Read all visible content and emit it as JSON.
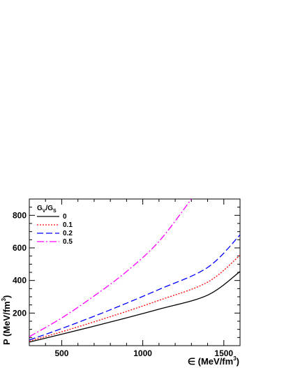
{
  "chart_data": {
    "type": "line",
    "xlabel": "∈ (MeV/fm",
    "xlabel_sup": "3",
    "xlabel_close": ")",
    "ylabel": "P (MeV/fm",
    "ylabel_sup": "3",
    "ylabel_close": ")",
    "xlim": [
      300,
      1600
    ],
    "ylim": [
      0,
      900
    ],
    "xticks": [
      500,
      1000,
      1500
    ],
    "yticks": [
      200,
      400,
      600,
      800
    ],
    "grid": false,
    "legend_position": "top-left",
    "legend_title": {
      "main": "G",
      "sub1": "V",
      "slash": "/G",
      "sub2": "S"
    },
    "series": [
      {
        "name": "0",
        "color": "#000000",
        "dash": "solid",
        "x": [
          300,
          500,
          800,
          1100,
          1400,
          1600
        ],
        "y": [
          22,
          70,
          145,
          224,
          310,
          455
        ]
      },
      {
        "name": "0.1",
        "color": "#ff0000",
        "dash": "dotted",
        "x": [
          300,
          500,
          800,
          1100,
          1400,
          1600
        ],
        "y": [
          28,
          85,
          178,
          278,
          390,
          555
        ]
      },
      {
        "name": "0.2",
        "color": "#0000ff",
        "dash": "dashed",
        "x": [
          300,
          500,
          800,
          1100,
          1400,
          1600
        ],
        "y": [
          35,
          105,
          220,
          345,
          480,
          680
        ]
      },
      {
        "name": "0.5",
        "color": "#ff00ff",
        "dash": "dashdot",
        "x": [
          300,
          500,
          700,
          900,
          1100,
          1300
        ],
        "y": [
          55,
          170,
          305,
          455,
          640,
          900
        ]
      }
    ]
  }
}
